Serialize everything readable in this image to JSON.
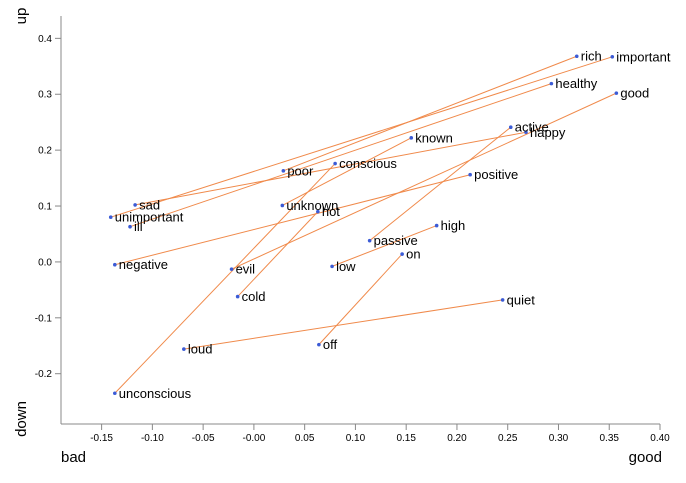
{
  "chart_data": {
    "type": "scatter",
    "x_corner_labels": {
      "negative": "bad",
      "positive": "good"
    },
    "y_corner_labels": {
      "positive": "up",
      "negative": "down"
    },
    "xlim": [
      -0.19,
      0.4
    ],
    "ylim": [
      -0.29,
      0.44
    ],
    "x_ticks": [
      -0.15,
      -0.1,
      -0.05,
      0.0,
      0.05,
      0.1,
      0.15,
      0.2,
      0.25,
      0.3,
      0.35,
      0.4
    ],
    "x_tick_labels": [
      "-0.15",
      "-0.10",
      "-0.05",
      "-0.00",
      "0.05",
      "0.10",
      "0.15",
      "0.20",
      "0.25",
      "0.30",
      "0.35",
      "0.40"
    ],
    "y_ticks": [
      -0.2,
      -0.1,
      0.0,
      0.1,
      0.2,
      0.3,
      0.4
    ],
    "y_tick_labels": [
      "-0.2",
      "-0.1",
      "0.0",
      "0.1",
      "0.2",
      "0.3",
      "0.4"
    ],
    "grid": false,
    "colors": {
      "point": "#3b5bd6",
      "line": "#f08a4b",
      "axis": "#888888"
    },
    "points": [
      {
        "label": "rich",
        "x": 0.318,
        "y": 0.368
      },
      {
        "label": "important",
        "x": 0.353,
        "y": 0.367
      },
      {
        "label": "healthy",
        "x": 0.293,
        "y": 0.319
      },
      {
        "label": "good",
        "x": 0.357,
        "y": 0.302
      },
      {
        "label": "active",
        "x": 0.253,
        "y": 0.241
      },
      {
        "label": "happy",
        "x": 0.268,
        "y": 0.232
      },
      {
        "label": "known",
        "x": 0.155,
        "y": 0.222
      },
      {
        "label": "conscious",
        "x": 0.08,
        "y": 0.176
      },
      {
        "label": "poor",
        "x": 0.029,
        "y": 0.163
      },
      {
        "label": "positive",
        "x": 0.213,
        "y": 0.156
      },
      {
        "label": "sad",
        "x": -0.117,
        "y": 0.102
      },
      {
        "label": "unknown",
        "x": 0.028,
        "y": 0.101
      },
      {
        "label": "hot",
        "x": 0.063,
        "y": 0.09
      },
      {
        "label": "unimportant",
        "x": -0.141,
        "y": 0.08
      },
      {
        "label": "ill",
        "x": -0.122,
        "y": 0.063
      },
      {
        "label": "high",
        "x": 0.18,
        "y": 0.065
      },
      {
        "label": "passive",
        "x": 0.114,
        "y": 0.038
      },
      {
        "label": "on",
        "x": 0.146,
        "y": 0.014
      },
      {
        "label": "negative",
        "x": -0.137,
        "y": -0.005
      },
      {
        "label": "low",
        "x": 0.077,
        "y": -0.008
      },
      {
        "label": "evil",
        "x": -0.022,
        "y": -0.013
      },
      {
        "label": "cold",
        "x": -0.016,
        "y": -0.062
      },
      {
        "label": "quiet",
        "x": 0.245,
        "y": -0.068
      },
      {
        "label": "off",
        "x": 0.064,
        "y": -0.148
      },
      {
        "label": "loud",
        "x": -0.069,
        "y": -0.156
      },
      {
        "label": "unconscious",
        "x": -0.137,
        "y": -0.235
      }
    ],
    "pairs": [
      [
        "rich",
        "poor"
      ],
      [
        "important",
        "unimportant"
      ],
      [
        "healthy",
        "ill"
      ],
      [
        "good",
        "evil"
      ],
      [
        "active",
        "passive"
      ],
      [
        "happy",
        "sad"
      ],
      [
        "known",
        "unknown"
      ],
      [
        "conscious",
        "unconscious"
      ],
      [
        "positive",
        "negative"
      ],
      [
        "hot",
        "cold"
      ],
      [
        "high",
        "low"
      ],
      [
        "on",
        "off"
      ],
      [
        "quiet",
        "loud"
      ]
    ]
  }
}
